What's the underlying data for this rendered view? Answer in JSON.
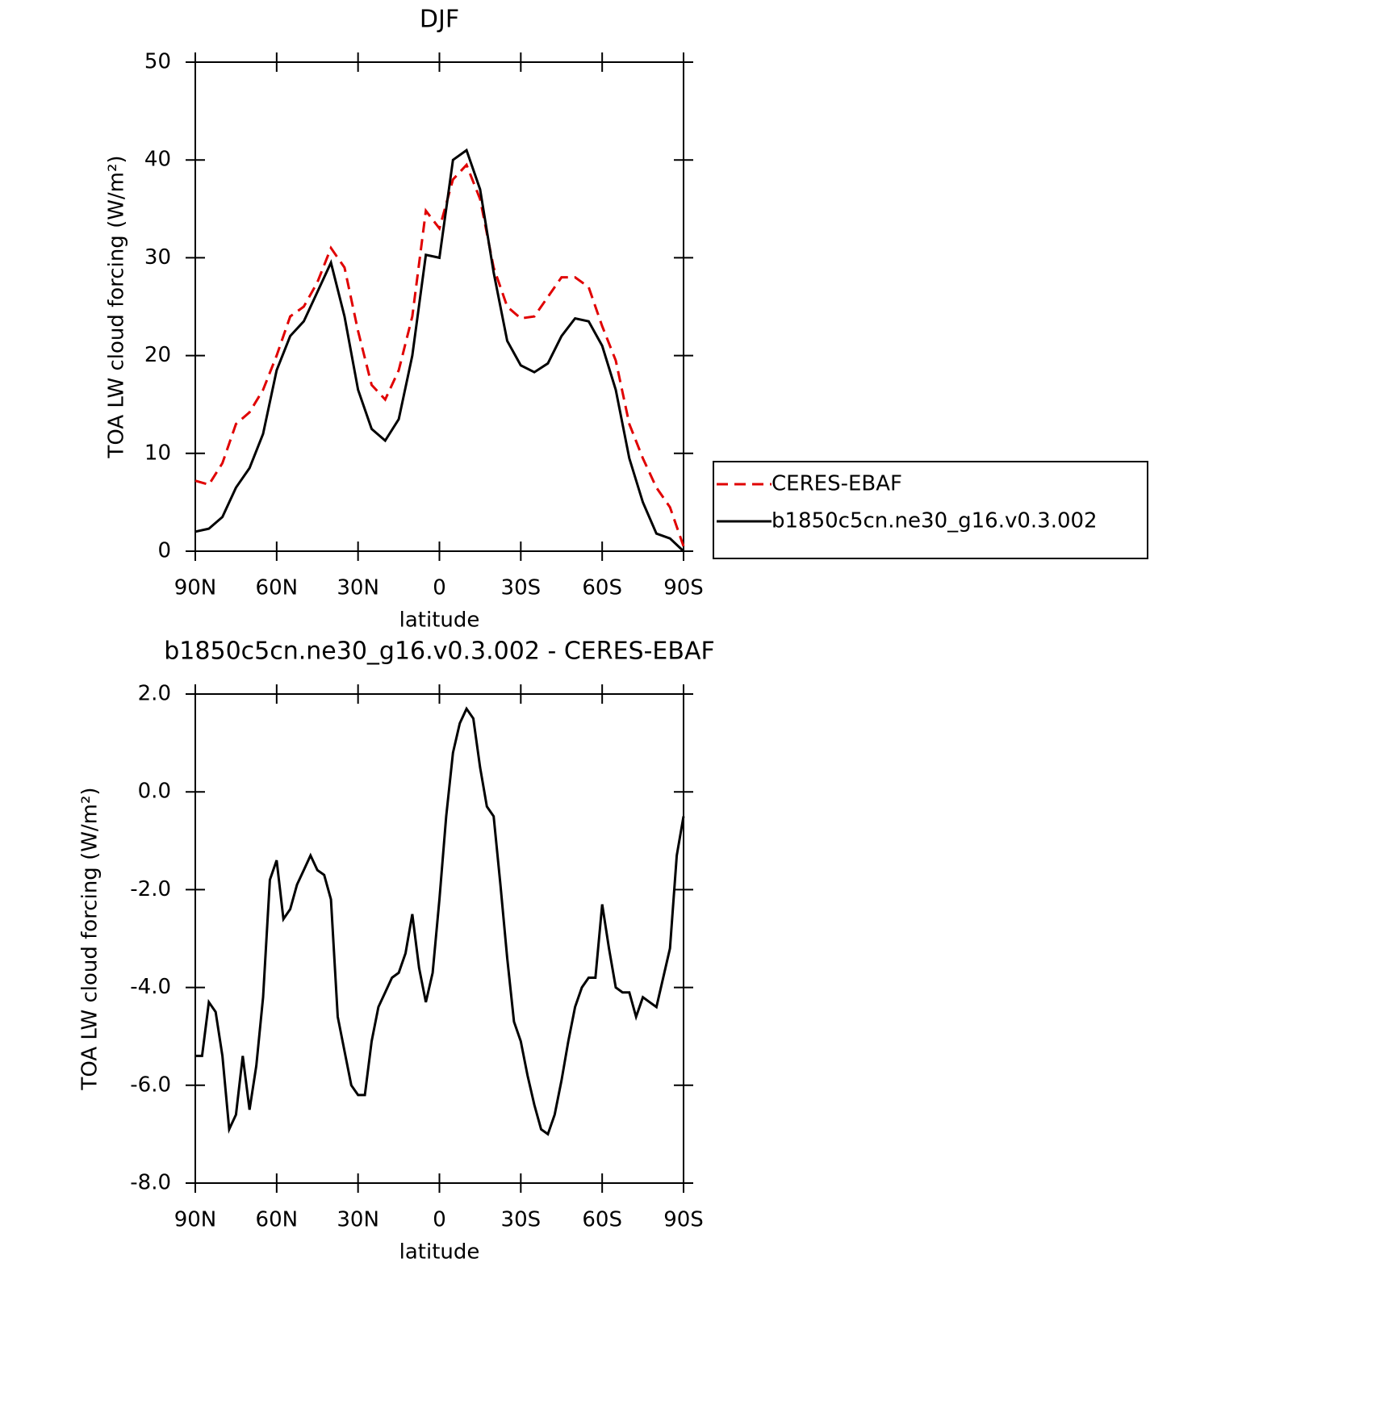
{
  "chart_data": [
    {
      "type": "line",
      "title": "DJF",
      "xlabel": "latitude",
      "ylabel": "TOA LW cloud forcing (W/m²)",
      "x": [
        90,
        85,
        80,
        75,
        70,
        65,
        60,
        55,
        50,
        45,
        40,
        35,
        30,
        25,
        20,
        15,
        10,
        5,
        0,
        -5,
        -10,
        -15,
        -20,
        -25,
        -30,
        -35,
        -40,
        -45,
        -50,
        -55,
        -60,
        -65,
        -70,
        -75,
        -80,
        -85,
        -90
      ],
      "series": [
        {
          "name": "CERES-EBAF",
          "color": "#e00000",
          "linestyle": "dashed",
          "values": [
            7.2,
            6.8,
            9,
            13,
            14.2,
            16.5,
            20,
            24,
            25,
            27.5,
            31,
            29,
            22.5,
            17,
            15.5,
            18.5,
            24,
            34.8,
            33,
            38,
            39.5,
            36,
            29,
            25,
            23.8,
            24,
            26,
            28,
            28,
            27,
            23,
            19.5,
            13,
            9.5,
            6.5,
            4.5,
            0.5
          ]
        },
        {
          "name": "b1850c5cn.ne30_g16.v0.3.002",
          "color": "#000000",
          "linestyle": "solid",
          "values": [
            2,
            2.3,
            3.5,
            6.5,
            8.5,
            12,
            18.5,
            22,
            23.5,
            26.5,
            29.5,
            24,
            16.5,
            12.5,
            11.3,
            13.5,
            20,
            30.3,
            30,
            40,
            41,
            37,
            28.5,
            21.5,
            19,
            18.3,
            19.2,
            22,
            23.8,
            23.5,
            21,
            16.5,
            9.5,
            5,
            1.8,
            1.3,
            0
          ]
        }
      ],
      "xlim": [
        90,
        -90
      ],
      "xticks": [
        {
          "value": 90,
          "label": "90N"
        },
        {
          "value": 60,
          "label": "60N"
        },
        {
          "value": 30,
          "label": "30N"
        },
        0,
        {
          "value": -30,
          "label": "30S"
        },
        {
          "value": -60,
          "label": "60S"
        },
        {
          "value": -90,
          "label": "90S"
        }
      ],
      "ylim": [
        0,
        50
      ],
      "yticks": [
        0,
        10,
        20,
        30,
        40,
        50
      ],
      "legend": "right"
    },
    {
      "type": "line",
      "title": "b1850c5cn.ne30_g16.v0.3.002 - CERES-EBAF",
      "xlabel": "latitude",
      "ylabel": "TOA LW cloud forcing (W/m²)",
      "x": [
        90,
        87.5,
        85,
        82.5,
        80,
        77.5,
        75,
        72.5,
        70,
        67.5,
        65,
        62.5,
        60,
        57.5,
        55,
        52.5,
        50,
        47.5,
        45,
        42.5,
        40,
        37.5,
        35,
        32.5,
        30,
        27.5,
        25,
        22.5,
        20,
        17.5,
        15,
        12.5,
        10,
        7.5,
        5,
        2.5,
        0,
        -2.5,
        -5,
        -7.5,
        -10,
        -12.5,
        -15,
        -17.5,
        -20,
        -22.5,
        -25,
        -27.5,
        -30,
        -32.5,
        -35,
        -37.5,
        -40,
        -42.5,
        -45,
        -47.5,
        -50,
        -52.5,
        -55,
        -57.5,
        -60,
        -62.5,
        -65,
        -67.5,
        -70,
        -72.5,
        -75,
        -77.5,
        -80,
        -82.5,
        -85,
        -87.5,
        -90
      ],
      "series": [
        {
          "color": "#000000",
          "linestyle": "solid",
          "values": [
            -5.4,
            -5.4,
            -4.3,
            -4.5,
            -5.4,
            -6.9,
            -6.6,
            -5.4,
            -6.5,
            -5.6,
            -4.2,
            -1.8,
            -1.4,
            -2.6,
            -2.4,
            -1.9,
            -1.6,
            -1.3,
            -1.6,
            -1.7,
            -2.2,
            -4.6,
            -5.3,
            -6.0,
            -6.2,
            -6.2,
            -5.1,
            -4.4,
            -4.1,
            -3.8,
            -3.7,
            -3.3,
            -2.5,
            -3.6,
            -4.3,
            -3.7,
            -2.2,
            -0.5,
            0.8,
            1.4,
            1.7,
            1.5,
            0.5,
            -0.3,
            -0.5,
            -1.9,
            -3.4,
            -4.7,
            -5.1,
            -5.8,
            -6.4,
            -6.9,
            -7.0,
            -6.6,
            -5.9,
            -5.1,
            -4.4,
            -4.0,
            -3.8,
            -3.8,
            -2.3,
            -3.2,
            -4.0,
            -4.1,
            -4.1,
            -4.6,
            -4.2,
            -4.3,
            -4.4,
            -3.8,
            -3.2,
            -1.3,
            -0.5
          ]
        }
      ],
      "xlim": [
        90,
        -90
      ],
      "xticks": [
        {
          "value": 90,
          "label": "90N"
        },
        {
          "value": 60,
          "label": "60N"
        },
        {
          "value": 30,
          "label": "30N"
        },
        0,
        {
          "value": -30,
          "label": "30S"
        },
        {
          "value": -60,
          "label": "60S"
        },
        {
          "value": -90,
          "label": "90S"
        }
      ],
      "ylim": [
        -8,
        2
      ],
      "yticks": [
        {
          "value": 2,
          "label": "2.0"
        },
        {
          "value": 0,
          "label": "0.0"
        },
        {
          "value": -2,
          "label": "-2.0"
        },
        {
          "value": -4,
          "label": "-4.0"
        },
        {
          "value": -6,
          "label": "-6.0"
        },
        {
          "value": -8,
          "label": "-8.0"
        }
      ]
    }
  ]
}
